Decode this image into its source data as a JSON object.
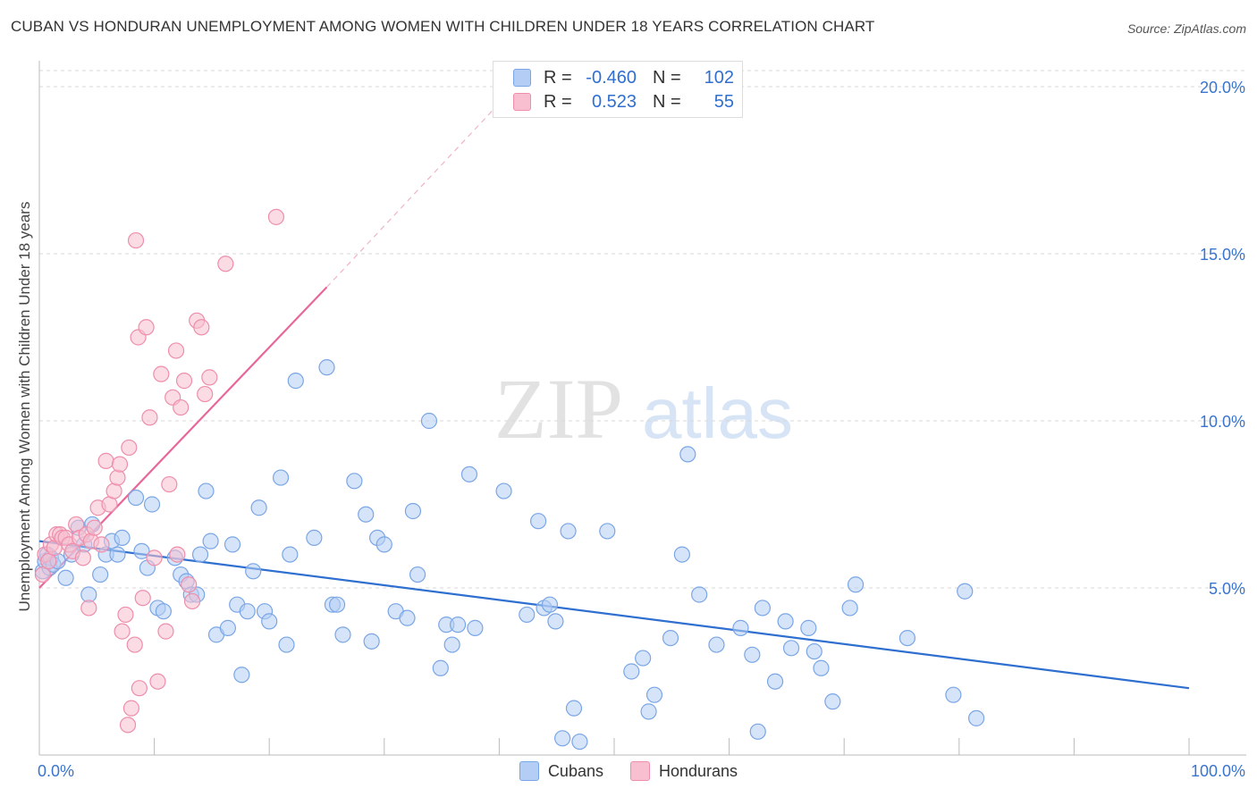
{
  "header": {
    "title": "CUBAN VS HONDURAN UNEMPLOYMENT AMONG WOMEN WITH CHILDREN UNDER 18 YEARS CORRELATION CHART",
    "source": "Source: ZipAtlas.com"
  },
  "watermark": {
    "zip": "ZIP",
    "atlas": "atlas"
  },
  "legend_top": {
    "rows": [
      {
        "r_label": "R =",
        "r_value": "-0.460",
        "n_label": "N =",
        "n_value": "102",
        "fill": "#b4cdf4",
        "stroke": "#7aa6e6"
      },
      {
        "r_label": "R =",
        "r_value": "0.523",
        "n_label": "N =",
        "n_value": "55",
        "fill": "#f7bfcf",
        "stroke": "#ee8eab"
      }
    ]
  },
  "legend_bottom": {
    "items": [
      {
        "label": "Cubans",
        "fill": "#b4cdf4",
        "stroke": "#7aa6e6"
      },
      {
        "label": "Hondurans",
        "fill": "#f7bfcf",
        "stroke": "#ee8eab"
      }
    ]
  },
  "chart_data": {
    "type": "scatter",
    "title": "CUBAN VS HONDURAN UNEMPLOYMENT AMONG WOMEN WITH CHILDREN UNDER 18 YEARS CORRELATION CHART",
    "xlabel": "",
    "ylabel": "Unemployment Among Women with Children Under 18 years",
    "xlim": [
      0,
      100
    ],
    "ylim": [
      0,
      20
    ],
    "x_tick_labels": [
      {
        "value": 0,
        "label": "0.0%"
      },
      {
        "value": 100,
        "label": "100.0%"
      }
    ],
    "y_tick_labels": [
      {
        "value": 5,
        "label": "5.0%"
      },
      {
        "value": 10,
        "label": "10.0%"
      },
      {
        "value": 15,
        "label": "15.0%"
      },
      {
        "value": 20,
        "label": "20.0%"
      }
    ],
    "x_minor_ticks": [
      10,
      20,
      30,
      40,
      50,
      60,
      70,
      80,
      90,
      100
    ],
    "grid": "horizontal dashed",
    "legend": "top-center",
    "colors": {
      "cubans": "#2f6fd0",
      "hondurans": "#e8679a"
    },
    "series": [
      {
        "name": "Cubans",
        "marker_fill": "#b4cdf4",
        "marker_stroke": "#7aa6e6",
        "trend": {
          "x": [
            0,
            100
          ],
          "y": [
            6.4,
            2.0
          ],
          "color": "#2f6fd0"
        },
        "points": [
          [
            0.3,
            5.5
          ],
          [
            0.5,
            5.8
          ],
          [
            0.7,
            6.0
          ],
          [
            0.9,
            5.6
          ],
          [
            1.0,
            5.9
          ],
          [
            1.2,
            5.7
          ],
          [
            1.6,
            5.8
          ],
          [
            2.3,
            5.3
          ],
          [
            2.8,
            6.0
          ],
          [
            3.4,
            6.8
          ],
          [
            3.9,
            6.3
          ],
          [
            4.3,
            4.8
          ],
          [
            4.6,
            6.9
          ],
          [
            5.3,
            5.4
          ],
          [
            5.8,
            6.0
          ],
          [
            6.3,
            6.4
          ],
          [
            6.8,
            6.0
          ],
          [
            7.2,
            6.5
          ],
          [
            8.4,
            7.7
          ],
          [
            8.9,
            6.1
          ],
          [
            9.4,
            5.6
          ],
          [
            9.8,
            7.5
          ],
          [
            10.3,
            4.4
          ],
          [
            10.8,
            4.3
          ],
          [
            11.8,
            5.9
          ],
          [
            12.3,
            5.4
          ],
          [
            12.8,
            5.2
          ],
          [
            13.2,
            4.8
          ],
          [
            13.7,
            4.8
          ],
          [
            14.0,
            6.0
          ],
          [
            14.5,
            7.9
          ],
          [
            14.9,
            6.4
          ],
          [
            15.4,
            3.6
          ],
          [
            16.4,
            3.8
          ],
          [
            16.8,
            6.3
          ],
          [
            17.2,
            4.5
          ],
          [
            17.6,
            2.4
          ],
          [
            18.1,
            4.3
          ],
          [
            18.6,
            5.5
          ],
          [
            19.1,
            7.4
          ],
          [
            19.6,
            4.3
          ],
          [
            20.0,
            4.0
          ],
          [
            21.0,
            8.3
          ],
          [
            21.5,
            3.3
          ],
          [
            21.8,
            6.0
          ],
          [
            22.3,
            11.2
          ],
          [
            23.9,
            6.5
          ],
          [
            25.0,
            11.6
          ],
          [
            25.5,
            4.5
          ],
          [
            25.9,
            4.5
          ],
          [
            26.4,
            3.6
          ],
          [
            27.4,
            8.2
          ],
          [
            28.4,
            7.2
          ],
          [
            28.9,
            3.4
          ],
          [
            29.4,
            6.5
          ],
          [
            30.0,
            6.3
          ],
          [
            31.0,
            4.3
          ],
          [
            32.0,
            4.1
          ],
          [
            32.5,
            7.3
          ],
          [
            32.9,
            5.4
          ],
          [
            33.9,
            10.0
          ],
          [
            34.9,
            2.6
          ],
          [
            35.4,
            3.9
          ],
          [
            35.9,
            3.3
          ],
          [
            36.4,
            3.9
          ],
          [
            37.4,
            8.4
          ],
          [
            37.9,
            3.8
          ],
          [
            40.4,
            7.9
          ],
          [
            42.4,
            4.2
          ],
          [
            43.4,
            7.0
          ],
          [
            43.9,
            4.4
          ],
          [
            44.4,
            4.5
          ],
          [
            44.9,
            4.0
          ],
          [
            45.5,
            0.5
          ],
          [
            46.0,
            6.7
          ],
          [
            46.5,
            1.4
          ],
          [
            47.0,
            0.4
          ],
          [
            49.4,
            6.7
          ],
          [
            51.5,
            2.5
          ],
          [
            52.5,
            2.9
          ],
          [
            53.0,
            1.3
          ],
          [
            53.5,
            1.8
          ],
          [
            54.9,
            3.5
          ],
          [
            55.9,
            6.0
          ],
          [
            56.4,
            9.0
          ],
          [
            57.4,
            4.8
          ],
          [
            58.9,
            3.3
          ],
          [
            61.0,
            3.8
          ],
          [
            62.0,
            3.0
          ],
          [
            62.5,
            0.7
          ],
          [
            62.9,
            4.4
          ],
          [
            64.0,
            2.2
          ],
          [
            64.9,
            4.0
          ],
          [
            65.4,
            3.2
          ],
          [
            66.9,
            3.8
          ],
          [
            67.4,
            3.1
          ],
          [
            68.0,
            2.6
          ],
          [
            69.0,
            1.6
          ],
          [
            70.5,
            4.4
          ],
          [
            71.0,
            5.1
          ],
          [
            75.5,
            3.5
          ],
          [
            79.5,
            1.8
          ],
          [
            80.5,
            4.9
          ],
          [
            81.5,
            1.1
          ]
        ]
      },
      {
        "name": "Hondurans",
        "marker_fill": "#f7bfcf",
        "marker_stroke": "#ee8eab",
        "trend": {
          "x": [
            0,
            25
          ],
          "y": [
            5.0,
            14.0
          ],
          "color": "#e8679a",
          "extrapolated_to": [
            40,
            19.5
          ]
        },
        "points": [
          [
            0.3,
            5.4
          ],
          [
            0.5,
            6.0
          ],
          [
            0.8,
            5.8
          ],
          [
            1.0,
            6.3
          ],
          [
            1.3,
            6.2
          ],
          [
            1.5,
            6.6
          ],
          [
            1.8,
            6.6
          ],
          [
            2.0,
            6.5
          ],
          [
            2.3,
            6.5
          ],
          [
            2.6,
            6.3
          ],
          [
            2.9,
            6.1
          ],
          [
            3.2,
            6.9
          ],
          [
            3.5,
            6.5
          ],
          [
            3.8,
            5.9
          ],
          [
            4.1,
            6.6
          ],
          [
            4.3,
            4.4
          ],
          [
            4.5,
            6.4
          ],
          [
            4.8,
            6.8
          ],
          [
            5.1,
            7.4
          ],
          [
            5.4,
            6.3
          ],
          [
            5.8,
            8.8
          ],
          [
            6.1,
            7.5
          ],
          [
            6.5,
            7.9
          ],
          [
            6.8,
            8.3
          ],
          [
            7.0,
            8.7
          ],
          [
            7.2,
            3.7
          ],
          [
            7.5,
            4.2
          ],
          [
            7.8,
            9.2
          ],
          [
            8.0,
            1.4
          ],
          [
            8.3,
            3.3
          ],
          [
            8.6,
            12.5
          ],
          [
            8.7,
            2.0
          ],
          [
            9.0,
            4.7
          ],
          [
            9.3,
            12.8
          ],
          [
            9.6,
            10.1
          ],
          [
            10.0,
            5.9
          ],
          [
            10.3,
            2.2
          ],
          [
            10.6,
            11.4
          ],
          [
            11.0,
            3.7
          ],
          [
            11.3,
            8.1
          ],
          [
            11.6,
            10.7
          ],
          [
            11.9,
            12.1
          ],
          [
            12.3,
            10.4
          ],
          [
            12.6,
            11.2
          ],
          [
            13.0,
            5.1
          ],
          [
            13.3,
            4.6
          ],
          [
            13.7,
            13.0
          ],
          [
            14.1,
            12.8
          ],
          [
            14.4,
            10.8
          ],
          [
            14.8,
            11.3
          ],
          [
            16.2,
            14.7
          ],
          [
            7.7,
            0.9
          ],
          [
            12.0,
            6.0
          ],
          [
            8.4,
            15.4
          ],
          [
            20.6,
            16.1
          ]
        ]
      }
    ]
  }
}
